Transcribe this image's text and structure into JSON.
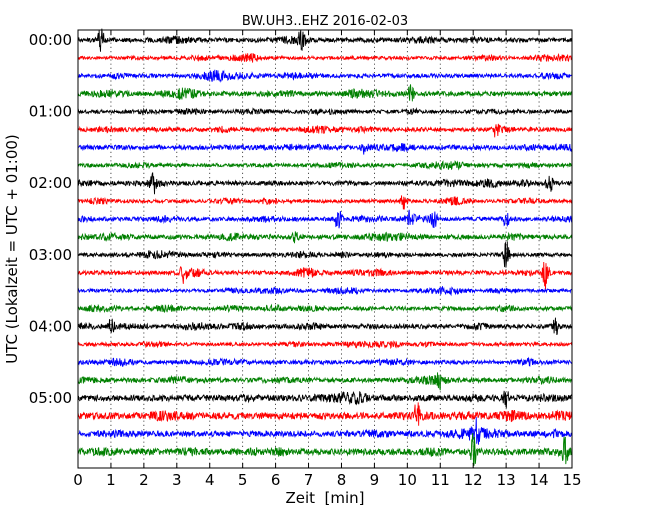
{
  "chart_data": {
    "type": "line",
    "title": "BW.UH3..EHZ 2016-02-03",
    "xlabel": "Zeit  [min]",
    "ylabel": "UTC (Lokalzeit = UTC + 01:00)",
    "xlim": [
      0,
      15
    ],
    "x_ticks": [
      "0",
      "1",
      "2",
      "3",
      "4",
      "5",
      "6",
      "7",
      "8",
      "9",
      "10",
      "11",
      "12",
      "13",
      "14",
      "15"
    ],
    "y_ticks": [
      "00:00",
      "01:00",
      "02:00",
      "03:00",
      "04:00",
      "05:00"
    ],
    "vertical_grid": "dotted",
    "trace_colors": [
      "#000000",
      "#ff0000",
      "#0000ff",
      "#008000"
    ],
    "traces_per_hour": 4,
    "minutes_per_trace": 15,
    "trace_count": 24,
    "events": [
      {
        "trace": 0,
        "minute": 0.7,
        "amp": 3.2
      },
      {
        "trace": 0,
        "minute": 6.8,
        "amp": 3.5
      },
      {
        "trace": 3,
        "minute": 10.1,
        "amp": 2.2
      },
      {
        "trace": 5,
        "minute": 12.7,
        "amp": 1.8
      },
      {
        "trace": 6,
        "minute": 8.7,
        "amp": 1.5
      },
      {
        "trace": 8,
        "minute": 2.3,
        "amp": 2.0
      },
      {
        "trace": 8,
        "minute": 14.3,
        "amp": 3.5
      },
      {
        "trace": 9,
        "minute": 9.9,
        "amp": 2.5
      },
      {
        "trace": 10,
        "minute": 7.9,
        "amp": 3.0
      },
      {
        "trace": 10,
        "minute": 10.1,
        "amp": 2.6
      },
      {
        "trace": 10,
        "minute": 10.8,
        "amp": 2.4
      },
      {
        "trace": 10,
        "minute": 13.0,
        "amp": 2.0
      },
      {
        "trace": 11,
        "minute": 6.6,
        "amp": 1.5
      },
      {
        "trace": 12,
        "minute": 13.0,
        "amp": 3.5
      },
      {
        "trace": 13,
        "minute": 3.2,
        "amp": 2.0
      },
      {
        "trace": 13,
        "minute": 14.2,
        "amp": 3.8
      },
      {
        "trace": 16,
        "minute": 1.0,
        "amp": 1.5
      },
      {
        "trace": 16,
        "minute": 14.5,
        "amp": 2.0
      },
      {
        "trace": 19,
        "minute": 11.0,
        "amp": 2.2
      },
      {
        "trace": 20,
        "minute": 13.0,
        "amp": 2.6
      },
      {
        "trace": 21,
        "minute": 10.3,
        "amp": 3.0
      },
      {
        "trace": 22,
        "minute": 12.1,
        "amp": 2.5
      },
      {
        "trace": 23,
        "minute": 12.0,
        "amp": 4.0
      },
      {
        "trace": 23,
        "minute": 14.8,
        "amp": 4.0
      }
    ]
  }
}
